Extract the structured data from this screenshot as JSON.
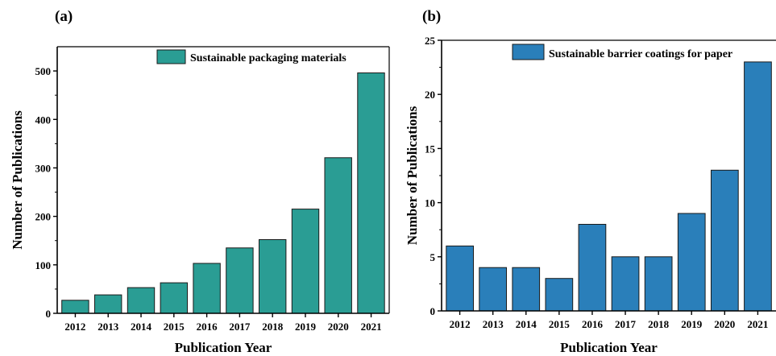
{
  "chart_data": [
    {
      "panel_label": "(a)",
      "type": "bar",
      "categories": [
        "2012",
        "2013",
        "2014",
        "2015",
        "2016",
        "2017",
        "2018",
        "2019",
        "2020",
        "2021"
      ],
      "series": [
        {
          "name": "Sustainable packaging materials",
          "color": "#2a9d94",
          "values": [
            27,
            38,
            53,
            63,
            103,
            135,
            152,
            215,
            321,
            496
          ]
        }
      ],
      "xlabel": "Publication Year",
      "ylabel": "Number of Publications",
      "ylim": [
        0,
        550
      ],
      "yticks": [
        0,
        100,
        200,
        300,
        400,
        500
      ],
      "grid": false,
      "legend_position": "top-right"
    },
    {
      "panel_label": "(b)",
      "type": "bar",
      "categories": [
        "2012",
        "2013",
        "2014",
        "2015",
        "2016",
        "2017",
        "2018",
        "2019",
        "2020",
        "2021"
      ],
      "series": [
        {
          "name": "Sustainable barrier coatings for paper",
          "color": "#2a7fba",
          "values": [
            6,
            4,
            4,
            3,
            8,
            5,
            5,
            9,
            13,
            23
          ]
        }
      ],
      "xlabel": "Publication Year",
      "ylabel": "Number of Publications",
      "ylim": [
        0,
        25
      ],
      "yticks": [
        0,
        5,
        10,
        15,
        20,
        25
      ],
      "grid": false,
      "legend_position": "top-right"
    }
  ]
}
